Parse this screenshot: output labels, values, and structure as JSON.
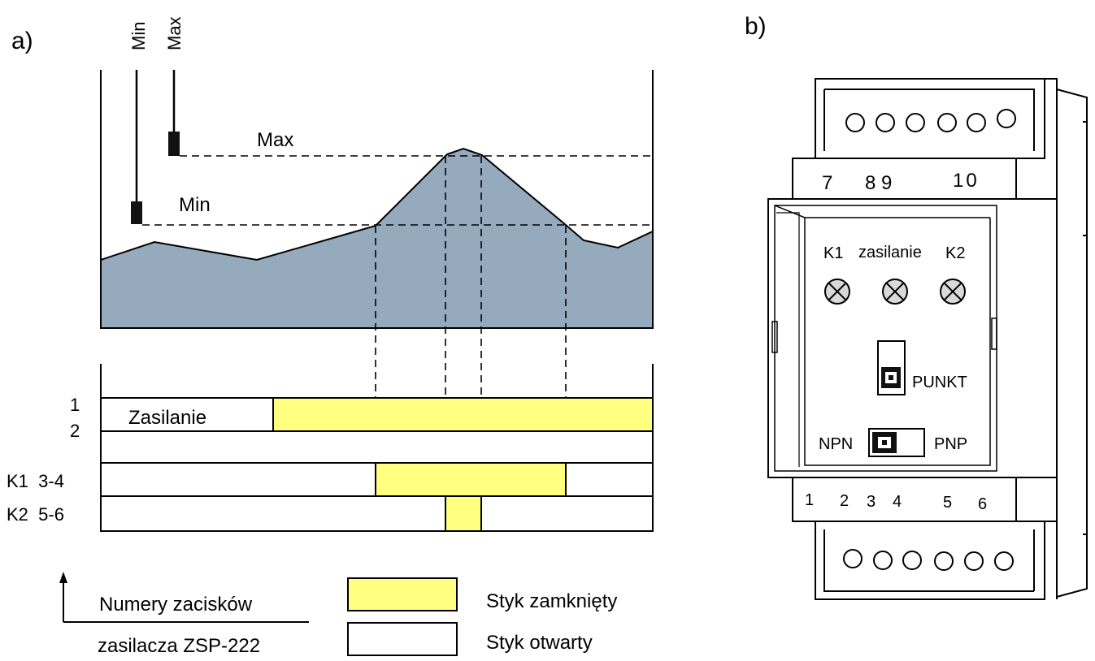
{
  "colors": {
    "liquid": "#95aabd",
    "contact_closed": "#ffff80",
    "stroke": "#000000",
    "background": "#ffffff"
  },
  "panel_a": {
    "label": "a)",
    "probe_labels": {
      "min": "Min",
      "max": "Max"
    },
    "level_labels": {
      "max": "Max",
      "min": "Min"
    },
    "timing": {
      "row_power_terminals_top": "1",
      "row_power_terminals_bottom": "2",
      "row_power_label": "Zasilanie",
      "row_k1_label": "K1  3-4",
      "row_k2_label": "K2  5-6"
    },
    "legend": {
      "axis_note_line1": "Numery zacisków",
      "axis_note_line2": "zasilacza ZSP-222",
      "closed_label": "Styk zamknięty",
      "open_label": "Styk otwarty"
    }
  },
  "panel_b": {
    "label": "b)",
    "top_terminals": [
      "7",
      "8 9",
      "10"
    ],
    "indicators": [
      "K1",
      "zasilanie",
      "K2"
    ],
    "indicator_icons": [
      "lamp-icon",
      "lamp-icon",
      "lamp-icon"
    ],
    "punkt_label": "PUNKT",
    "npn_label": "NPN",
    "pnp_label": "PNP",
    "bottom_terminals": [
      "1",
      "2",
      "3",
      "4",
      "5",
      "6"
    ]
  }
}
